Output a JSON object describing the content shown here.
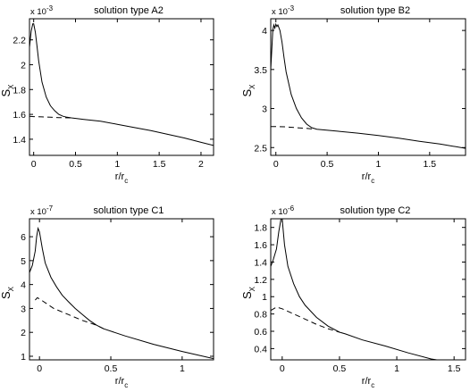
{
  "chart_data": [
    {
      "type": "line",
      "title": "solution type A2",
      "xlabel": "r/r",
      "xlabel_sub": "c",
      "ylabel": "S",
      "ylabel_sub": "X",
      "y_scale_label": "x 10",
      "y_scale_exp": "-3",
      "xlim": [
        -0.05,
        2.15
      ],
      "ylim": [
        1.27,
        2.37
      ],
      "xticks": [
        0,
        0.5,
        1,
        1.5,
        2
      ],
      "xtick_labels": [
        "0",
        "0.5",
        "1",
        "1.5",
        "2"
      ],
      "yticks": [
        1.4,
        1.6,
        1.8,
        2.0,
        2.2
      ],
      "ytick_labels": [
        "1.4",
        "1.6",
        "1.8",
        "2",
        "2.2"
      ],
      "grid": false,
      "series": [
        {
          "style": "solid",
          "x": [
            -0.05,
            -0.03,
            -0.01,
            0.0,
            0.02,
            0.04,
            0.06,
            0.1,
            0.15,
            0.2,
            0.25,
            0.3,
            0.35,
            0.4,
            0.45,
            0.6,
            0.8,
            1.0,
            1.2,
            1.4,
            1.6,
            1.8,
            2.0,
            2.15
          ],
          "y": [
            2.14,
            2.27,
            2.33,
            2.33,
            2.26,
            2.15,
            2.03,
            1.86,
            1.74,
            1.67,
            1.63,
            1.6,
            1.585,
            1.577,
            1.572,
            1.56,
            1.545,
            1.52,
            1.495,
            1.47,
            1.44,
            1.41,
            1.375,
            1.35
          ]
        },
        {
          "style": "dashed",
          "x": [
            -0.05,
            0.0,
            0.1,
            0.2,
            0.3,
            0.45
          ],
          "y": [
            1.585,
            1.582,
            1.58,
            1.577,
            1.574,
            1.572
          ]
        }
      ]
    },
    {
      "type": "line",
      "title": "solution type B2",
      "xlabel": "r/r",
      "xlabel_sub": "c",
      "ylabel": "S",
      "ylabel_sub": "X",
      "y_scale_label": "x 10",
      "y_scale_exp": "-3",
      "xlim": [
        -0.05,
        1.85
      ],
      "ylim": [
        2.4,
        4.15
      ],
      "xticks": [
        0,
        0.5,
        1,
        1.5
      ],
      "xtick_labels": [
        "0",
        "0.5",
        "1",
        "1.5"
      ],
      "yticks": [
        2.5,
        3.0,
        3.5,
        4.0
      ],
      "ytick_labels": [
        "2.5",
        "3",
        "3.5",
        "4"
      ],
      "grid": false,
      "series": [
        {
          "style": "solid",
          "x": [
            -0.05,
            -0.03,
            -0.02,
            -0.01,
            0.0,
            0.01,
            0.02,
            0.04,
            0.06,
            0.08,
            0.1,
            0.15,
            0.2,
            0.25,
            0.3,
            0.35,
            0.4,
            0.6,
            0.8,
            1.0,
            1.2,
            1.4,
            1.6,
            1.85
          ],
          "y": [
            3.5,
            4.0,
            4.07,
            4.03,
            4.08,
            4.05,
            4.07,
            4.0,
            3.85,
            3.65,
            3.47,
            3.18,
            3.0,
            2.88,
            2.8,
            2.755,
            2.735,
            2.71,
            2.685,
            2.655,
            2.62,
            2.58,
            2.545,
            2.49
          ]
        },
        {
          "style": "dashed",
          "x": [
            -0.05,
            0.0,
            0.1,
            0.2,
            0.3,
            0.38
          ],
          "y": [
            2.77,
            2.77,
            2.765,
            2.755,
            2.745,
            2.735
          ]
        }
      ]
    },
    {
      "type": "line",
      "title": "solution type C1",
      "xlabel": "r/r",
      "xlabel_sub": "c",
      "ylabel": "S",
      "ylabel_sub": "X",
      "y_scale_label": "x 10",
      "y_scale_exp": "-7",
      "xlim": [
        -0.07,
        1.22
      ],
      "ylim": [
        0.85,
        6.75
      ],
      "xticks": [
        0,
        0.5,
        1
      ],
      "xtick_labels": [
        "0",
        "0.5",
        "1"
      ],
      "yticks": [
        1,
        2,
        3,
        4,
        5,
        6
      ],
      "ytick_labels": [
        "1",
        "2",
        "3",
        "4",
        "5",
        "6"
      ],
      "grid": false,
      "series": [
        {
          "style": "solid",
          "x": [
            -0.07,
            -0.05,
            -0.03,
            -0.02,
            -0.01,
            0.0,
            0.02,
            0.04,
            0.08,
            0.12,
            0.16,
            0.2,
            0.25,
            0.3,
            0.35,
            0.4,
            0.45,
            0.6,
            0.8,
            1.0,
            1.22
          ],
          "y": [
            4.5,
            4.8,
            5.4,
            6.0,
            6.35,
            6.2,
            5.5,
            4.9,
            4.3,
            3.9,
            3.55,
            3.3,
            3.0,
            2.75,
            2.5,
            2.3,
            2.15,
            1.85,
            1.5,
            1.2,
            0.9
          ]
        },
        {
          "style": "dashed",
          "x": [
            -0.03,
            -0.015,
            0.0,
            0.05,
            0.1,
            0.2,
            0.3,
            0.4,
            0.45
          ],
          "y": [
            3.35,
            3.45,
            3.4,
            3.2,
            3.0,
            2.75,
            2.5,
            2.3,
            2.15
          ]
        }
      ]
    },
    {
      "type": "line",
      "title": "solution type C2",
      "xlabel": "r/r",
      "xlabel_sub": "c",
      "ylabel": "S",
      "ylabel_sub": "X",
      "y_scale_label": "x 10",
      "y_scale_exp": "-6",
      "xlim": [
        -0.1,
        1.6
      ],
      "ylim": [
        0.27,
        1.9
      ],
      "xticks": [
        0,
        0.5,
        1,
        1.5
      ],
      "xtick_labels": [
        "0",
        "0.5",
        "1",
        "1.5"
      ],
      "yticks": [
        0.4,
        0.6,
        0.8,
        1.0,
        1.2,
        1.4,
        1.6,
        1.8
      ],
      "ytick_labels": [
        "0.4",
        "0.6",
        "0.8",
        "1",
        "1.2",
        "1.4",
        "1.6",
        "1.8"
      ],
      "grid": false,
      "series": [
        {
          "style": "solid",
          "x": [
            -0.1,
            -0.08,
            -0.05,
            -0.03,
            -0.01,
            0.0,
            0.02,
            0.05,
            0.1,
            0.15,
            0.2,
            0.3,
            0.4,
            0.5,
            0.55,
            0.7,
            0.9,
            1.1,
            1.3,
            1.35
          ],
          "y": [
            1.35,
            1.42,
            1.55,
            1.75,
            1.9,
            1.9,
            1.6,
            1.35,
            1.15,
            1.0,
            0.9,
            0.76,
            0.66,
            0.59,
            0.57,
            0.5,
            0.43,
            0.35,
            0.28,
            0.27
          ]
        },
        {
          "style": "dashed",
          "x": [
            -0.1,
            -0.05,
            0.0,
            0.1,
            0.2,
            0.3,
            0.4,
            0.5
          ],
          "y": [
            0.84,
            0.88,
            0.86,
            0.8,
            0.74,
            0.68,
            0.63,
            0.59
          ]
        }
      ]
    }
  ]
}
